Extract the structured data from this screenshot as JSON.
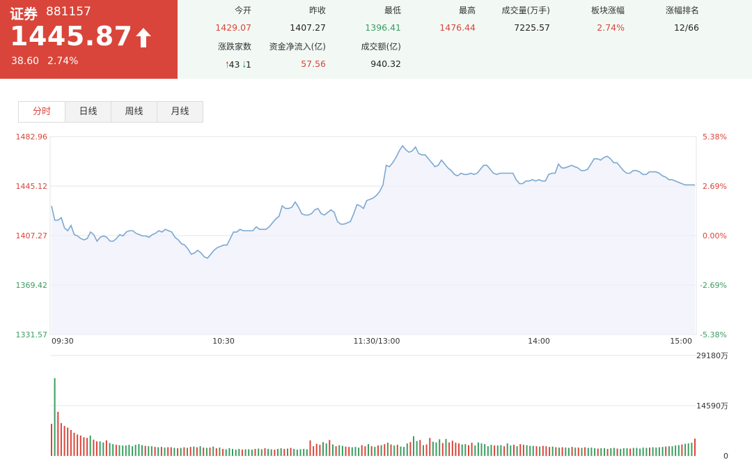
{
  "header": {
    "name": "证券",
    "code": "881157",
    "price": "1445.87",
    "change": "38.60",
    "change_pct": "2.74%",
    "trend": "arrow-up-icon"
  },
  "stats": [
    {
      "label": "今开",
      "value": "1429.07",
      "color": "red"
    },
    {
      "label": "昨收",
      "value": "1407.27",
      "color": "dark"
    },
    {
      "label": "最低",
      "value": "1396.41",
      "color": "green"
    },
    {
      "label": "最高",
      "value": "1476.44",
      "color": "red"
    },
    {
      "label": "成交量(万手)",
      "value": "7225.57",
      "color": "dark"
    },
    {
      "label": "板块涨幅",
      "value": "2.74%",
      "color": "red"
    },
    {
      "label": "涨幅排名",
      "value": "12/66",
      "color": "dark"
    },
    {
      "label": "资金净流入(亿)",
      "value": "57.56",
      "color": "red"
    },
    {
      "label": "成交额(亿)",
      "value": "940.32",
      "color": "dark"
    }
  ],
  "breadth": {
    "label": "涨跌家数",
    "up": "43",
    "down": "1"
  },
  "tabs": [
    "分时",
    "日线",
    "周线",
    "月线"
  ],
  "active_tab": 0,
  "colors": {
    "up": "#d9453a",
    "down": "#3a9c60",
    "line": "#7ba7d0",
    "header_bg": "#d9453a",
    "stats_bg": "#f2f9f5"
  },
  "chart_data": [
    {
      "type": "line",
      "title": "",
      "y_ticks_left": [
        "1482.96",
        "1445.12",
        "1407.27",
        "1369.42",
        "1331.57"
      ],
      "y_ticks_right": [
        "5.38%",
        "2.69%",
        "0.00%",
        "-2.69%",
        "-5.38%"
      ],
      "x_ticks": [
        "09:30",
        "10:30",
        "11:30/13:00",
        "14:00",
        "15:00"
      ],
      "ylim": [
        1331.57,
        1482.96
      ],
      "baseline": 1407.27,
      "series": [
        {
          "values": [
            1430,
            1419,
            1419,
            1421,
            1413,
            1411,
            1415,
            1408,
            1407,
            1405,
            1404,
            1405,
            1410,
            1408,
            1403,
            1406,
            1407,
            1406,
            1403,
            1403,
            1405,
            1408,
            1407,
            1410,
            1411,
            1411,
            1409,
            1408,
            1407,
            1407,
            1406,
            1408,
            1409,
            1411,
            1410,
            1412,
            1411,
            1410,
            1406,
            1404,
            1401,
            1400,
            1397,
            1393,
            1394,
            1396,
            1394,
            1391,
            1390,
            1393,
            1396,
            1398,
            1399,
            1400,
            1400,
            1405,
            1410,
            1410,
            1412,
            1411,
            1411,
            1411,
            1411,
            1414,
            1412,
            1412,
            1412,
            1414,
            1417,
            1420,
            1422,
            1430,
            1428,
            1428,
            1429,
            1433,
            1429,
            1424,
            1423,
            1423,
            1424,
            1427,
            1428,
            1424,
            1423,
            1425,
            1427,
            1425,
            1418,
            1416,
            1416,
            1417,
            1418,
            1424,
            1431,
            1430,
            1428,
            1434,
            1435,
            1436,
            1438,
            1441,
            1446,
            1461,
            1460,
            1463,
            1467,
            1472,
            1476,
            1473,
            1471,
            1472,
            1475,
            1470,
            1469,
            1469,
            1466,
            1463,
            1460,
            1461,
            1465,
            1462,
            1459,
            1457,
            1454,
            1453,
            1455,
            1454,
            1454,
            1455,
            1454,
            1455,
            1458,
            1461,
            1461,
            1458,
            1455,
            1454,
            1455,
            1455,
            1455,
            1455,
            1455,
            1450,
            1447,
            1447,
            1449,
            1449,
            1450,
            1449,
            1450,
            1449,
            1449,
            1454,
            1455,
            1455,
            1462,
            1459,
            1459,
            1460,
            1461,
            1460,
            1459,
            1457,
            1457,
            1458,
            1462,
            1466,
            1466,
            1465,
            1467,
            1468,
            1466,
            1463,
            1463,
            1460,
            1457,
            1455,
            1455,
            1457,
            1457,
            1456,
            1454,
            1454,
            1456,
            1456,
            1456,
            1455,
            1453,
            1452,
            1450,
            1450,
            1449,
            1448,
            1447,
            1446,
            1446,
            1446,
            1446
          ]
        }
      ]
    },
    {
      "type": "bar",
      "title": "",
      "y_ticks": [
        "29180万",
        "14590万",
        "0"
      ],
      "ylim": [
        0,
        29180
      ],
      "volume_pattern_wan": [
        9300,
        22600,
        12800,
        9500,
        8700,
        8200,
        7500,
        6700,
        6200,
        5900,
        5400,
        5200,
        5900,
        4700,
        4200,
        4200,
        3900,
        4500,
        3700,
        3400,
        3200,
        3100,
        3000,
        3000,
        3200,
        2800,
        3200,
        3400,
        3100,
        2900,
        2800,
        2800,
        2600,
        2500,
        2600,
        2400,
        2500,
        2500,
        2300,
        2200,
        2300,
        2500,
        2300,
        2600,
        2700,
        2500,
        2800,
        2400,
        2300,
        2400,
        2700,
        2200,
        2400,
        2000,
        1900,
        2200,
        2000,
        1800,
        2000,
        1800,
        1900,
        1900,
        1800,
        2000,
        2100,
        1900,
        2200,
        2000,
        1900,
        1800,
        2000,
        2200,
        2000,
        2100,
        2300,
        2000,
        1800,
        1900,
        2000,
        1900,
        4500,
        2800,
        3500,
        3200,
        4000,
        3600,
        4600,
        3300,
        2800,
        3100,
        2900,
        2700,
        2600,
        2500,
        2600,
        2400,
        3100,
        2800,
        3400,
        2800,
        2600,
        3000,
        3100,
        3400,
        3800,
        3300,
        3000,
        3200,
        2700,
        2600,
        3600,
        4000,
        5700,
        4300,
        4600,
        3100,
        3300,
        5200,
        4100,
        3900,
        4800,
        3700,
        4900,
        3900,
        4400,
        3800,
        3600,
        3300,
        3400,
        3100,
        3800,
        3000,
        3900,
        3600,
        3400,
        2800,
        3200,
        3000,
        3000,
        3100,
        2800,
        3600,
        3000,
        3200,
        2800,
        3400,
        3200,
        3100,
        2900,
        2900,
        2800,
        2700,
        2900,
        2800,
        2600,
        2700,
        2500,
        2400,
        2500,
        2400,
        2300,
        2600,
        2400,
        2400,
        2300,
        2500,
        2300,
        2400,
        2200,
        2100,
        2200,
        2200,
        2000,
        2200,
        2300,
        2100,
        2000,
        2200,
        2200,
        2100,
        2300,
        2300,
        2100,
        2400,
        2300,
        2400,
        2500,
        2400,
        2500,
        2600,
        2700,
        2800,
        2800,
        3000,
        3100,
        3300,
        3500,
        3600,
        3800,
        5000
      ],
      "volume_colors": "rgrrrrrrrrrrgrrggrggrggggggggrggrgrgrrgrgrgrgrgrgrgrgrgggggrgggrggrggrggrgrgggggrrrrggrgrggrrgggrrgrgrgrgrgrgggrggrgrrgggrgrrrrggrrggggggrggrggrgrrgggrgrrrgrgrggrgrgrgggrggrggrgggrgggggrggggrggggrgggrggrggggggggg"
    }
  ]
}
